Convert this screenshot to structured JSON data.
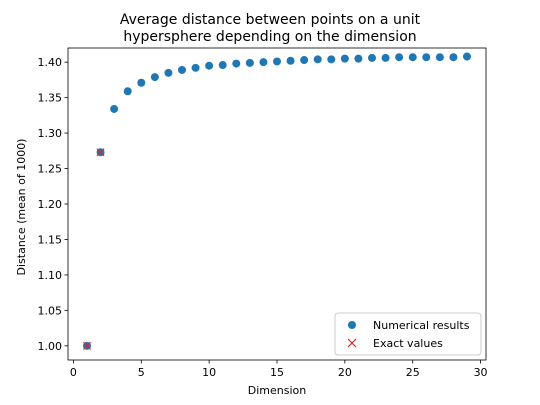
{
  "chart_data": {
    "type": "scatter",
    "title": [
      "Average distance between points on a unit",
      "hypersphere depending on the dimension"
    ],
    "xlabel": "Dimension",
    "ylabel": "Distance (mean of 1000)",
    "xlim": [
      -0.4,
      30.4
    ],
    "ylim": [
      0.98,
      1.42
    ],
    "xticks": [
      0,
      5,
      10,
      15,
      20,
      25,
      30
    ],
    "yticks": [
      1.0,
      1.05,
      1.1,
      1.15,
      1.2,
      1.25,
      1.3,
      1.35,
      1.4
    ],
    "ytick_labels": [
      "1.00",
      "1.05",
      "1.10",
      "1.15",
      "1.20",
      "1.25",
      "1.30",
      "1.35",
      "1.40"
    ],
    "legend_position": "lower right",
    "series": [
      {
        "name": "Numerical results",
        "marker": "circle",
        "color": "#1f77b4",
        "x": [
          1,
          2,
          3,
          4,
          5,
          6,
          7,
          8,
          9,
          10,
          11,
          12,
          13,
          14,
          15,
          16,
          17,
          18,
          19,
          20,
          21,
          22,
          23,
          24,
          25,
          26,
          27,
          28,
          29
        ],
        "y": [
          1.0,
          1.273,
          1.334,
          1.359,
          1.371,
          1.379,
          1.385,
          1.389,
          1.392,
          1.395,
          1.396,
          1.398,
          1.399,
          1.4,
          1.401,
          1.402,
          1.403,
          1.404,
          1.404,
          1.405,
          1.405,
          1.406,
          1.406,
          1.407,
          1.407,
          1.407,
          1.407,
          1.407,
          1.408
        ]
      },
      {
        "name": "Exact values",
        "marker": "x",
        "color": "#d62728",
        "x": [
          1,
          2
        ],
        "y": [
          1.0,
          1.273
        ]
      }
    ]
  }
}
